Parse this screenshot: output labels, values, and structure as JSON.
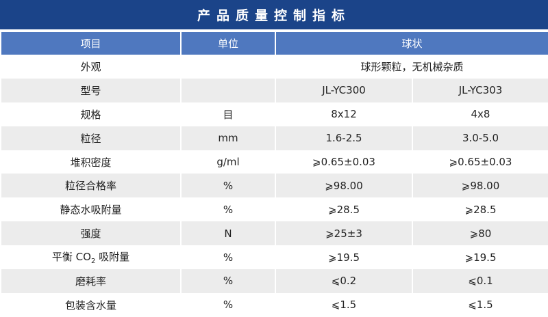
{
  "title": "产品质量控制指标",
  "header": [
    "项目",
    "单位",
    "球状"
  ],
  "rows": [
    {
      "item": "外观",
      "unit": "",
      "value": "球形颗粒，无机械杂质",
      "span": true
    },
    {
      "item": "型号",
      "unit": "",
      "v1": "JL-YC300",
      "v2": "JL-YC303"
    },
    {
      "item": "规格",
      "unit": "目",
      "v1": "8x12",
      "v2": "4x8"
    },
    {
      "item": "粒径",
      "unit": "mm",
      "v1": "1.6-2.5",
      "v2": "3.0-5.0"
    },
    {
      "item": "堆积密度",
      "unit": "g/ml",
      "v1": "⩾0.65±0.03",
      "v2": "⩾0.65±0.03"
    },
    {
      "item": "粒径合格率",
      "unit": "%",
      "v1": "⩾98.00",
      "v2": "⩾98.00"
    },
    {
      "item": "静态水吸附量",
      "unit": "%",
      "v1": "⩾28.5",
      "v2": "⩾28.5"
    },
    {
      "item": "强度",
      "unit": "N",
      "v1": "⩾25±3",
      "v2": "⩾80"
    },
    {
      "item_pre": "平衡 CO",
      "item_sub": "2",
      "item_post": " 吸附量",
      "unit": "%",
      "v1": "⩾19.5",
      "v2": "⩾19.5"
    },
    {
      "item": "磨耗率",
      "unit": "%",
      "v1": "⩽0.2",
      "v2": "⩽0.1"
    },
    {
      "item": "包装含水量",
      "unit": "%",
      "v1": "⩽1.5",
      "v2": "⩽1.5"
    }
  ]
}
